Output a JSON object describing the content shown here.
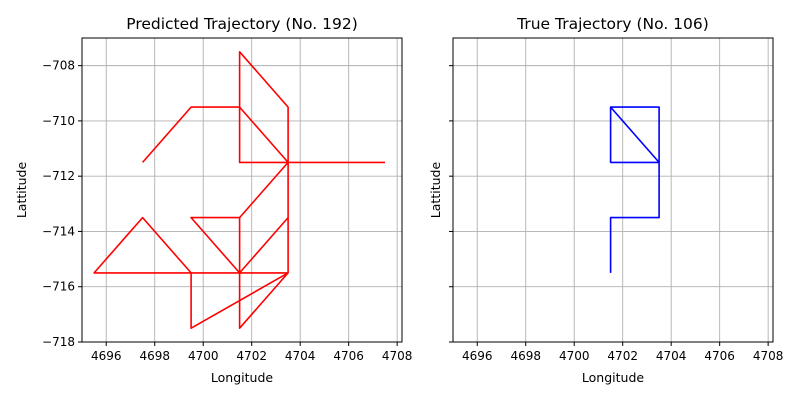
{
  "chart_data": [
    {
      "type": "line",
      "title": "Predicted Trajectory (No. 192)",
      "xlabel": "Longitude",
      "ylabel": "Lattitude",
      "xlim": [
        4695,
        4708.2
      ],
      "ylim": [
        -718,
        -707
      ],
      "xticks": [
        4696,
        4698,
        4700,
        4702,
        4704,
        4706,
        4708
      ],
      "yticks": [
        -708,
        -710,
        -712,
        -714,
        -716,
        -718
      ],
      "show_ytick_labels": true,
      "grid": true,
      "color": "#ff0000",
      "x": [
        4697.5,
        4699.5,
        4701.5,
        4701.5,
        4703.5,
        4703.5,
        4701.5,
        4699.5,
        4695.5,
        4697.5,
        4699.5,
        4699.5,
        4703.5,
        4701.5,
        4701.5,
        4703.5,
        4703.5,
        4701.5,
        4699.5,
        4701.5,
        4703.5,
        4701.5,
        4701.5,
        4707.5
      ],
      "y": [
        -711.5,
        -709.5,
        -709.5,
        -707.5,
        -709.5,
        -713.5,
        -715.5,
        -715.5,
        -715.5,
        -713.5,
        -715.5,
        -717.5,
        -715.5,
        -717.5,
        -713.5,
        -711.5,
        -715.5,
        -715.5,
        -713.5,
        -713.5,
        -711.5,
        -709.5,
        -711.5,
        -711.5
      ]
    },
    {
      "type": "line",
      "title": "True Trajectory (No. 106)",
      "xlabel": "Longitude",
      "ylabel": "Lattitude",
      "xlim": [
        4695,
        4708.2
      ],
      "ylim": [
        -718,
        -707
      ],
      "xticks": [
        4696,
        4698,
        4700,
        4702,
        4704,
        4706,
        4708
      ],
      "yticks": [
        -708,
        -710,
        -712,
        -714,
        -716,
        -718
      ],
      "show_ytick_labels": false,
      "grid": true,
      "color": "#0000ff",
      "x": [
        4701.5,
        4701.5,
        4703.5,
        4703.5,
        4701.5,
        4701.5,
        4703.5,
        4703.5,
        4701.5,
        4701.5
      ],
      "y": [
        -715.5,
        -713.5,
        -713.5,
        -711.5,
        -711.5,
        -709.5,
        -711.5,
        -709.5,
        -709.5,
        -711.5
      ]
    }
  ]
}
